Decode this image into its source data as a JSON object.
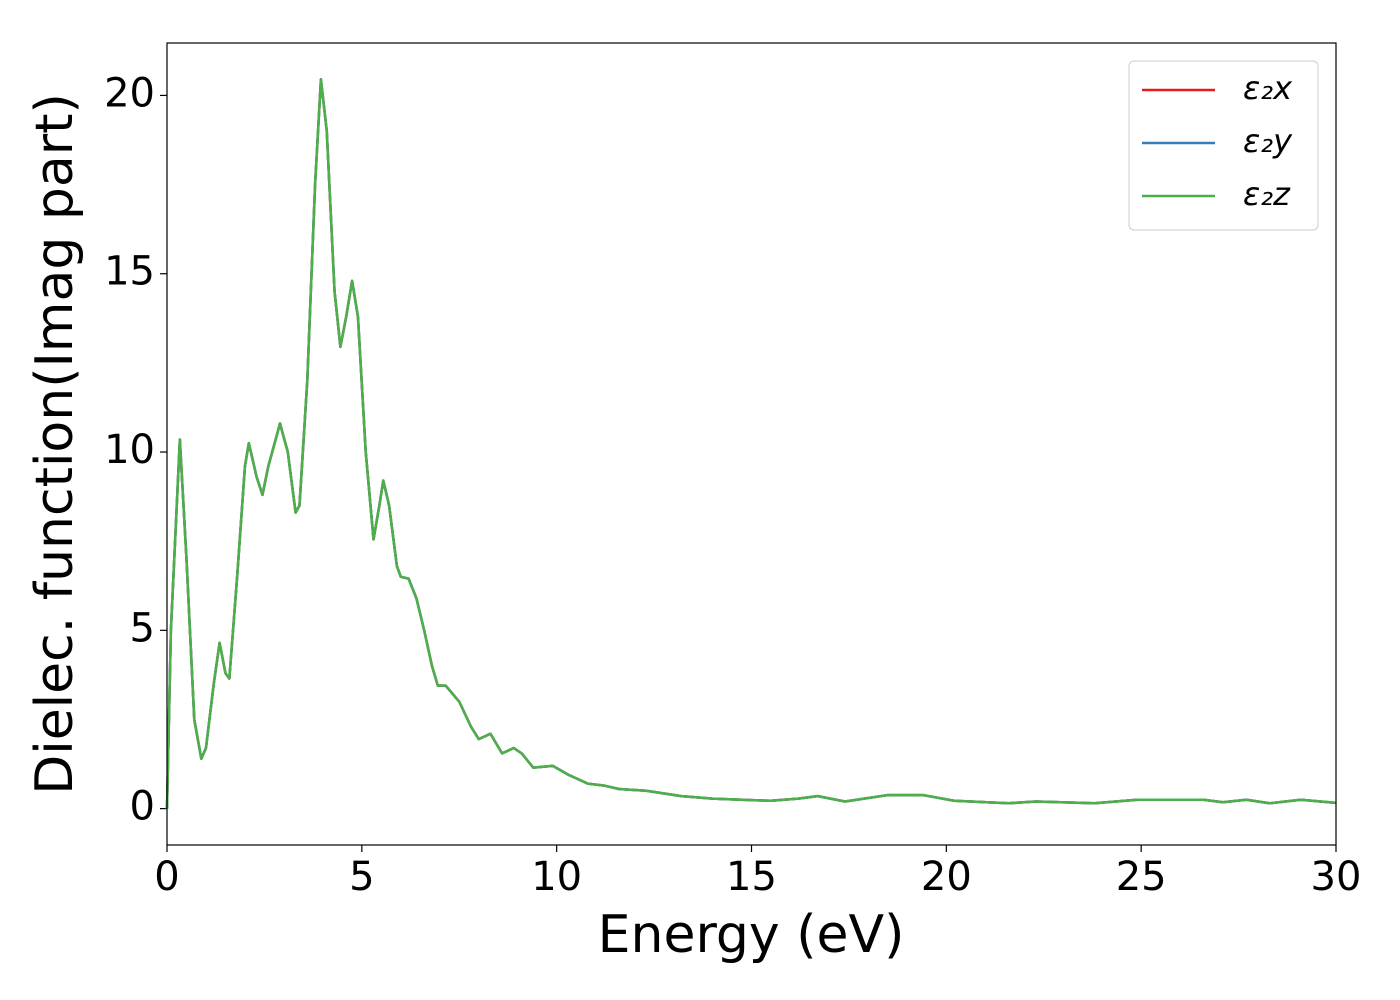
{
  "chart_data": {
    "type": "line",
    "xlabel": "Energy (eV)",
    "ylabel": "Dielec. function(Imag part)",
    "x": [
      0,
      0.1,
      0.33,
      0.5,
      0.7,
      0.88,
      1.0,
      1.2,
      1.35,
      1.5,
      1.6,
      1.8,
      2.0,
      2.1,
      2.3,
      2.45,
      2.6,
      2.9,
      3.1,
      3.3,
      3.4,
      3.6,
      3.8,
      3.95,
      4.1,
      4.3,
      4.45,
      4.6,
      4.75,
      4.9,
      5.1,
      5.3,
      5.45,
      5.55,
      5.7,
      5.9,
      6.0,
      6.2,
      6.4,
      6.6,
      6.8,
      6.95,
      7.15,
      7.5,
      7.8,
      8.0,
      8.3,
      8.6,
      8.9,
      9.1,
      9.4,
      9.9,
      10.3,
      10.8,
      11.2,
      11.6,
      12.3,
      13.2,
      14,
      15,
      15.5,
      16.2,
      16.7,
      17.4,
      18.5,
      19.4,
      20.2,
      21.6,
      22.3,
      23.8,
      24.9,
      25.5,
      26.6,
      27.1,
      27.7,
      28.3,
      29.1,
      30
    ],
    "series": [
      {
        "name": "ε₂x",
        "color": "#e41a1c",
        "values": [
          0,
          5,
          10.35,
          7,
          2.5,
          1.4,
          1.7,
          3.5,
          4.65,
          3.8,
          3.65,
          6.5,
          9.6,
          10.25,
          9.3,
          8.8,
          9.6,
          10.8,
          10,
          8.3,
          8.5,
          12,
          17.5,
          20.45,
          19,
          14.5,
          12.95,
          13.8,
          14.8,
          13.8,
          10,
          7.55,
          8.5,
          9.2,
          8.5,
          6.8,
          6.5,
          6.45,
          5.9,
          5,
          4,
          3.45,
          3.45,
          3.0,
          2.3,
          1.95,
          2.1,
          1.55,
          1.7,
          1.55,
          1.15,
          1.2,
          0.95,
          0.7,
          0.65,
          0.55,
          0.5,
          0.35,
          0.28,
          0.24,
          0.22,
          0.28,
          0.35,
          0.2,
          0.38,
          0.38,
          0.22,
          0.15,
          0.2,
          0.15,
          0.25,
          0.25,
          0.25,
          0.18,
          0.25,
          0.15,
          0.25,
          0.16
        ]
      },
      {
        "name": "ε₂y",
        "color": "#377eb8",
        "values": [
          0,
          5,
          10.35,
          7,
          2.5,
          1.4,
          1.7,
          3.5,
          4.65,
          3.8,
          3.65,
          6.5,
          9.6,
          10.25,
          9.3,
          8.8,
          9.6,
          10.8,
          10,
          8.3,
          8.5,
          12,
          17.5,
          20.45,
          19,
          14.5,
          12.95,
          13.8,
          14.8,
          13.8,
          10,
          7.55,
          8.5,
          9.2,
          8.5,
          6.8,
          6.5,
          6.45,
          5.9,
          5,
          4,
          3.45,
          3.45,
          3.0,
          2.3,
          1.95,
          2.1,
          1.55,
          1.7,
          1.55,
          1.15,
          1.2,
          0.95,
          0.7,
          0.65,
          0.55,
          0.5,
          0.35,
          0.28,
          0.24,
          0.22,
          0.28,
          0.35,
          0.2,
          0.38,
          0.38,
          0.22,
          0.15,
          0.2,
          0.15,
          0.25,
          0.25,
          0.25,
          0.18,
          0.25,
          0.15,
          0.25,
          0.16
        ]
      },
      {
        "name": "ε₂z",
        "color": "#4daf4a",
        "values": [
          0,
          5,
          10.35,
          7,
          2.5,
          1.4,
          1.7,
          3.5,
          4.65,
          3.8,
          3.65,
          6.5,
          9.6,
          10.25,
          9.3,
          8.8,
          9.6,
          10.8,
          10,
          8.3,
          8.5,
          12,
          17.5,
          20.45,
          19,
          14.5,
          12.95,
          13.8,
          14.8,
          13.8,
          10,
          7.55,
          8.5,
          9.2,
          8.5,
          6.8,
          6.5,
          6.45,
          5.9,
          5,
          4,
          3.45,
          3.45,
          3.0,
          2.3,
          1.95,
          2.1,
          1.55,
          1.7,
          1.55,
          1.15,
          1.2,
          0.95,
          0.7,
          0.65,
          0.55,
          0.5,
          0.35,
          0.28,
          0.24,
          0.22,
          0.28,
          0.35,
          0.2,
          0.38,
          0.38,
          0.22,
          0.15,
          0.2,
          0.15,
          0.25,
          0.25,
          0.25,
          0.18,
          0.25,
          0.15,
          0.25,
          0.16
        ]
      }
    ],
    "xlim": [
      0,
      30
    ],
    "xticks": [
      0,
      5,
      10,
      15,
      20,
      25,
      30
    ],
    "ylim": [
      -1.02,
      21.47
    ],
    "yticks": [
      0,
      5,
      10,
      15,
      20
    ],
    "grid": false,
    "legend": "upper-right"
  }
}
